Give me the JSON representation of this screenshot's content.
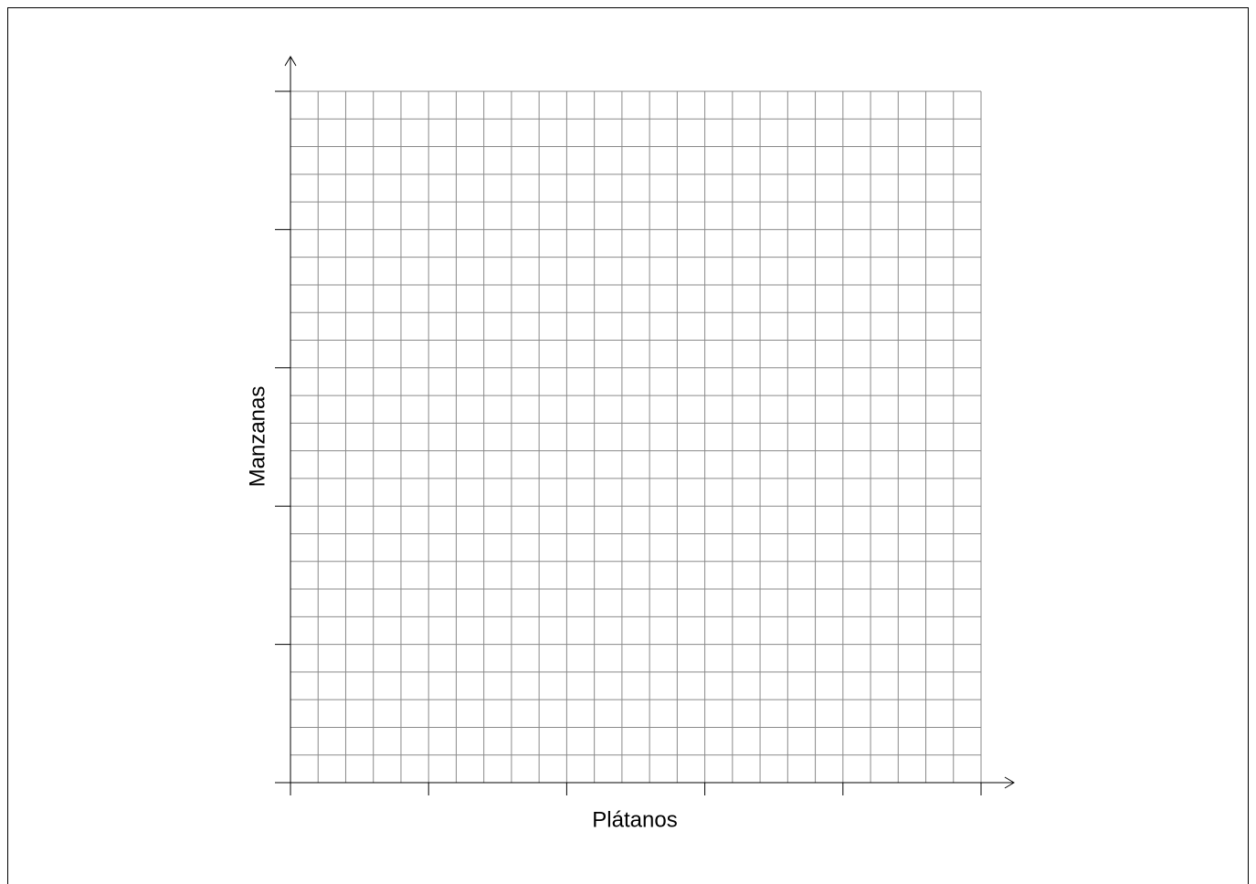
{
  "chart_data": {
    "type": "grid",
    "x_label": "Plátanos",
    "y_label": "Manzanas"
  }
}
